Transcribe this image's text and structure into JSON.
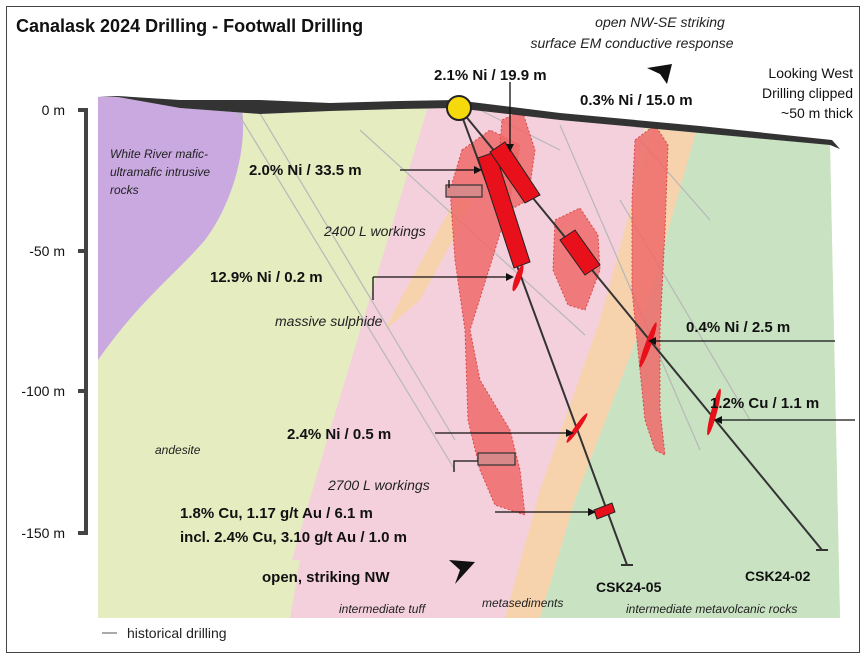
{
  "title": "Canalask 2024 Drilling - Footwall Drilling",
  "depth_axis": {
    "ticks": [
      {
        "label": "0 m",
        "value": 0
      },
      {
        "label": "-50 m",
        "value": -50
      },
      {
        "label": "-100 m",
        "value": -100
      },
      {
        "label": "-150 m",
        "value": -150
      }
    ]
  },
  "notes": {
    "em_response_line1": "open NW-SE striking",
    "em_response_line2": "surface EM conductive response",
    "view_line1": "Looking West",
    "view_line2": "Drilling clipped",
    "view_line3": "~50 m thick",
    "open_nw": "open, striking NW"
  },
  "intercepts": {
    "i1": "2.1% Ni / 19.9 m",
    "i2": "0.3% Ni / 15.0 m",
    "i3": "2.0% Ni / 33.5 m",
    "i4": "12.9% Ni / 0.2 m",
    "i5": "0.4% Ni / 2.5 m",
    "i6": "1.2% Cu / 1.1 m",
    "i7": "2.4% Ni / 0.5 m",
    "i8_line1": "1.8% Cu, 1.17 g/t Au / 6.1 m",
    "i8_line2": "incl. 2.4% Cu, 3.10 g/t Au / 1.0 m"
  },
  "units": {
    "white_river_line1": "White River mafic-",
    "white_river_line2": "ultramafic intrusive",
    "white_river_line3": "rocks",
    "andesite": "andesite",
    "intermediate_tuff": "intermediate tuff",
    "metasediments": "metasediments",
    "metavolcanic": "intermediate metavolcanic rocks"
  },
  "workings": {
    "w2400": "2400 L workings",
    "w2700": "2700 L workings",
    "massive": "massive sulphide"
  },
  "holes": {
    "csk05": "CSK24-05",
    "csk02": "CSK24-02"
  },
  "legend": {
    "historical": "historical drilling"
  },
  "colors": {
    "intrusive": "#c9a9e0",
    "andesite": "#e4ecc0",
    "tuff": "#f4d0dc",
    "metasediments": "#f6d3ad",
    "metavolcanic": "#c8e2c2",
    "mineralization": "#ee6a6a",
    "collar": "#f5d90a"
  }
}
